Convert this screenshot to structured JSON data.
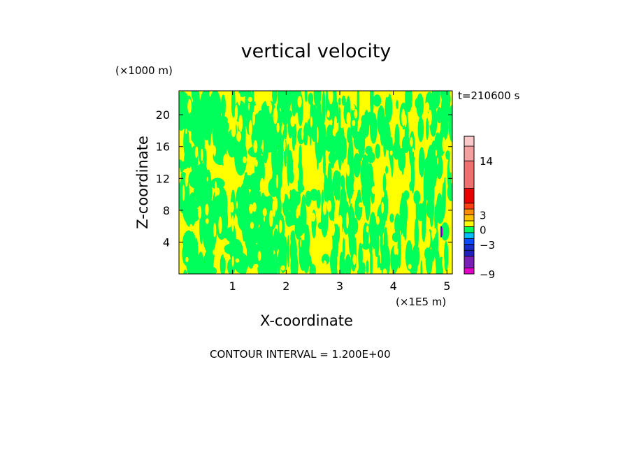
{
  "chart_data": {
    "type": "heatmap",
    "title": "vertical velocity",
    "xlabel": "X-coordinate",
    "ylabel": "Z-coordinate",
    "x_unit": "(×1E5 m)",
    "y_unit": "(×1000 m)",
    "time_label": "t=210600 s",
    "contour_interval_text": "CONTOUR INTERVAL = 1.200E+00",
    "xlim": [
      0,
      5.1
    ],
    "ylim": [
      0,
      23
    ],
    "x_ticks": [
      1,
      2,
      3,
      4,
      5
    ],
    "x_tick_labels": [
      "1",
      "2",
      "3",
      "4",
      "5"
    ],
    "y_ticks": [
      4,
      8,
      12,
      16,
      20
    ],
    "y_tick_labels": [
      "4",
      "8",
      "12",
      "16",
      "20"
    ],
    "field_colors": {
      "near_zero_positive": "#ffff00",
      "near_zero_negative": "#00ff5a"
    },
    "colorbar": {
      "tick_labels": [
        {
          "value": 14,
          "label": "14"
        },
        {
          "value": 3,
          "label": "3"
        },
        {
          "value": 0,
          "label": "0"
        },
        {
          "value": -3,
          "label": "−3"
        },
        {
          "value": -9,
          "label": "−9"
        }
      ],
      "bands": [
        {
          "from": -9,
          "to": -7.8,
          "color": "#e600c8"
        },
        {
          "from": -7.8,
          "to": -5.4,
          "color": "#7a1fb4"
        },
        {
          "from": -5.4,
          "to": -4.2,
          "color": "#2020c0"
        },
        {
          "from": -4.2,
          "to": -3,
          "color": "#1a2ccc"
        },
        {
          "from": -3,
          "to": -1.8,
          "color": "#0a4cff"
        },
        {
          "from": -1.8,
          "to": -0.6,
          "color": "#00bfff"
        },
        {
          "from": -0.6,
          "to": 0.6,
          "color": "#00ff5a"
        },
        {
          "from": 0.6,
          "to": 1.8,
          "color": "#ffff00"
        },
        {
          "from": 1.8,
          "to": 3,
          "color": "#ffc000"
        },
        {
          "from": 3,
          "to": 4.2,
          "color": "#ff8c00"
        },
        {
          "from": 4.2,
          "to": 5.4,
          "color": "#ff4010"
        },
        {
          "from": 5.4,
          "to": 8.4,
          "color": "#e80000"
        },
        {
          "from": 8.4,
          "to": 14,
          "color": "#f07070"
        },
        {
          "from": 14,
          "to": 17,
          "color": "#f5a0a0"
        },
        {
          "from": 17,
          "to": 19,
          "color": "#fac8c8"
        }
      ]
    }
  }
}
